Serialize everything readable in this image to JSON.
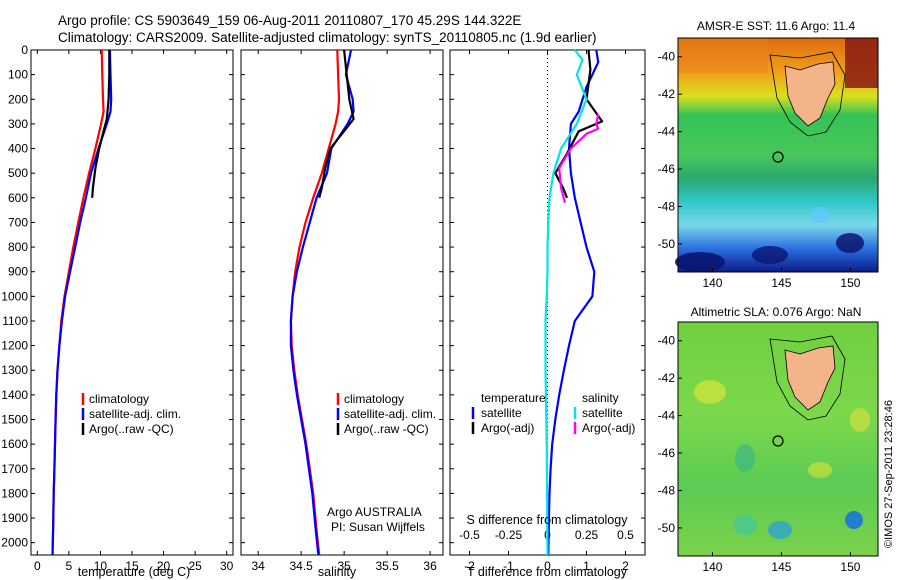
{
  "header": {
    "line1": "Argo profile: CS 5903649_159 06-Aug-2011 20110807_170 45.29S 144.322E",
    "line2": "Climatology: CARS2009. Satellite-adjusted climatology: synTS_20110805.nc (1.9d earlier)"
  },
  "credit": "©IMOS 27-Sep-2011 23:28:46",
  "colors": {
    "climatology": "#ff0000",
    "satellite": "#0000ff",
    "argo": "#000000",
    "satellite_s": "#00e5e5",
    "argo_s": "#ff00ff"
  },
  "chart_data": [
    {
      "type": "line",
      "id": "temperature",
      "xlabel": "temperature (deg C)",
      "ylabel": "",
      "xlim": [
        -1,
        31
      ],
      "ylim": [
        2050,
        0
      ],
      "y_reversed": true,
      "x_ticks": [
        0,
        5,
        10,
        15,
        20,
        25,
        30
      ],
      "y_ticks": [
        0,
        100,
        200,
        300,
        400,
        500,
        600,
        700,
        800,
        900,
        1000,
        1100,
        1200,
        1300,
        1400,
        1500,
        1600,
        1700,
        1800,
        1900,
        2000
      ],
      "legend": [
        "climatology",
        "satellite-adj. clim.",
        "Argo(..raw -QC)"
      ],
      "series": [
        {
          "name": "climatology",
          "color": "#ff0000",
          "x": [
            10.2,
            10.3,
            10.4,
            10.5,
            10.1,
            9.2,
            8.2,
            7.3,
            6.5,
            5.7,
            5.0,
            4.3,
            3.8,
            3.5,
            3.2,
            3.0,
            2.9,
            2.8,
            2.7,
            2.6,
            2.5,
            2.4
          ],
          "y": [
            0,
            100,
            200,
            250,
            300,
            400,
            500,
            600,
            700,
            800,
            900,
            1000,
            1100,
            1200,
            1300,
            1400,
            1500,
            1600,
            1700,
            1800,
            1950,
            2050
          ]
        },
        {
          "name": "satellite-adj. clim.",
          "color": "#0000ff",
          "x": [
            11.5,
            11.6,
            11.7,
            11.6,
            11.0,
            9.7,
            8.5,
            7.7,
            6.8,
            6.0,
            5.2,
            4.4,
            3.9,
            3.5,
            3.2,
            3.0,
            2.9,
            2.8,
            2.7,
            2.6,
            2.5,
            2.4
          ],
          "y": [
            0,
            100,
            200,
            250,
            300,
            400,
            500,
            600,
            700,
            800,
            900,
            1000,
            1100,
            1200,
            1300,
            1400,
            1500,
            1600,
            1700,
            1800,
            1950,
            2050
          ]
        },
        {
          "name": "Argo(..raw -QC)",
          "color": "#000000",
          "x": [
            11.4,
            11.4,
            11.3,
            11.0,
            10.6,
            9.8,
            9.2,
            8.8,
            8.7
          ],
          "y": [
            0,
            100,
            200,
            280,
            320,
            400,
            480,
            560,
            600
          ]
        }
      ]
    },
    {
      "type": "line",
      "id": "salinity",
      "xlabel": "salinity",
      "ylabel": "",
      "xlim": [
        33.8,
        36.15
      ],
      "ylim": [
        2050,
        0
      ],
      "y_reversed": true,
      "x_ticks": [
        34,
        34.5,
        35,
        35.5,
        36
      ],
      "x_tick_labels": [
        "34",
        "34.5",
        "35",
        "35.5",
        "36"
      ],
      "legend": [
        "climatology",
        "satellite-adj. clim.",
        "Argo(..raw -QC)"
      ],
      "annotation": [
        "Argo AUSTRALIA",
        "PI: Susan Wijffels"
      ],
      "series": [
        {
          "name": "climatology",
          "color": "#ff0000",
          "x": [
            34.92,
            34.93,
            34.94,
            34.93,
            34.9,
            34.82,
            34.74,
            34.64,
            34.55,
            34.48,
            34.43,
            34.4,
            34.38,
            34.39,
            34.42,
            34.46,
            34.51,
            34.56,
            34.6,
            34.64,
            34.68,
            34.71
          ],
          "y": [
            0,
            100,
            200,
            250,
            300,
            400,
            500,
            600,
            700,
            800,
            900,
            1000,
            1100,
            1200,
            1300,
            1400,
            1500,
            1600,
            1700,
            1800,
            1950,
            2050
          ]
        },
        {
          "name": "satellite-adj. clim.",
          "color": "#0000ff",
          "x": [
            35.08,
            35.02,
            35.1,
            35.11,
            35.04,
            34.85,
            34.8,
            34.68,
            34.6,
            34.52,
            34.45,
            34.4,
            34.38,
            34.38,
            34.41,
            34.45,
            34.5,
            34.55,
            34.59,
            34.63,
            34.67,
            34.7
          ],
          "y": [
            0,
            100,
            200,
            250,
            300,
            400,
            500,
            600,
            700,
            800,
            900,
            1000,
            1100,
            1200,
            1300,
            1400,
            1500,
            1600,
            1700,
            1800,
            1950,
            2050
          ]
        },
        {
          "name": "Argo(..raw -QC)",
          "color": "#000000",
          "x": [
            35.0,
            35.03,
            35.06,
            35.11,
            35.02,
            34.84,
            34.78,
            34.74,
            34.71
          ],
          "y": [
            0,
            100,
            200,
            280,
            320,
            400,
            480,
            560,
            600
          ]
        }
      ]
    },
    {
      "type": "line",
      "id": "difference",
      "xlabel": "T difference from climatology",
      "x2label": "S difference from climatology",
      "xlim": [
        -2.5,
        2.5
      ],
      "ylim": [
        2050,
        0
      ],
      "y_reversed": true,
      "x_ticks": [
        -2,
        -1,
        0,
        1,
        2
      ],
      "x2_ticks": [
        -0.5,
        -0.25,
        0,
        0.25,
        0.5
      ],
      "x2_tick_labels": [
        "-0.5",
        "-0.25",
        "0",
        "0.25",
        "0.5"
      ],
      "zero_line": "dotted",
      "legend_headers": [
        "temperature",
        "salinity"
      ],
      "legend": [
        "satellite",
        "Argo(-adj)",
        "satellite",
        "Argo(-adj)"
      ],
      "series": [
        {
          "name": "temperature satellite",
          "color": "#0000ff",
          "x": [
            1.25,
            1.3,
            1.0,
            0.8,
            0.6,
            0.55,
            0.6,
            0.7,
            0.85,
            1.0,
            1.2,
            1.15,
            0.7,
            0.55,
            0.42,
            0.3,
            0.2,
            0.12,
            0.08,
            0.05,
            0.03,
            0.02
          ],
          "y": [
            0,
            50,
            150,
            250,
            300,
            400,
            500,
            600,
            700,
            800,
            900,
            1000,
            1100,
            1200,
            1300,
            1400,
            1500,
            1600,
            1700,
            1800,
            1950,
            2050
          ]
        },
        {
          "name": "temperature Argo(-adj)",
          "color": "#000000",
          "x": [
            1.05,
            1.1,
            1.0,
            1.4,
            0.8,
            0.5,
            0.2,
            0.4,
            0.5
          ],
          "y": [
            0,
            80,
            200,
            290,
            330,
            420,
            500,
            560,
            600
          ]
        },
        {
          "name": "salinity satellite",
          "color": "#00e5e5",
          "x": [
            0.7,
            0.9,
            0.75,
            1.0,
            0.75,
            0.35,
            0.15,
            0.05,
            0.02,
            0.0,
            0.0,
            -0.02,
            -0.05,
            -0.05,
            -0.05,
            -0.04,
            -0.03,
            -0.02,
            -0.01,
            0.0
          ],
          "y": [
            0,
            40,
            100,
            200,
            300,
            400,
            500,
            600,
            700,
            800,
            900,
            1000,
            1100,
            1200,
            1300,
            1400,
            1500,
            1600,
            1800,
            2050
          ]
        },
        {
          "name": "salinity Argo(-adj)",
          "color": "#ff00ff",
          "x": [
            1.3,
            1.25,
            1.3,
            1.0,
            0.6,
            0.3,
            0.35,
            0.45
          ],
          "y": [
            260,
            300,
            320,
            340,
            400,
            480,
            560,
            620
          ]
        }
      ]
    }
  ],
  "maps": [
    {
      "id": "sst",
      "title": "AMSR-E SST: 11.6 Argo: 11.4",
      "x_ticks": [
        140,
        145,
        150
      ],
      "y_ticks": [
        -40,
        -42,
        -44,
        -46,
        -48,
        -50
      ],
      "xlim": [
        137.5,
        152
      ],
      "ylim": [
        -51.5,
        -39
      ],
      "marker": {
        "lon": 144.322,
        "lat": -45.29
      }
    },
    {
      "id": "sla",
      "title": "Altimetric SLA: 0.076 Argo: NaN",
      "x_ticks": [
        140,
        145,
        150
      ],
      "y_ticks": [
        -40,
        -42,
        -44,
        -46,
        -48,
        -50
      ],
      "xlim": [
        137.5,
        152
      ],
      "ylim": [
        -51.5,
        -39
      ],
      "marker": {
        "lon": 144.322,
        "lat": -45.29
      }
    }
  ]
}
